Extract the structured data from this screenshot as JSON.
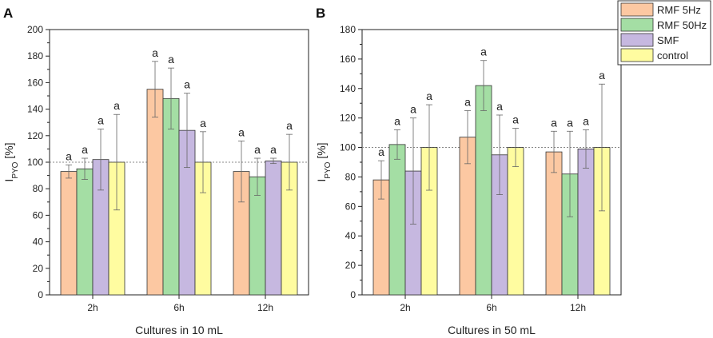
{
  "legend": {
    "entries": [
      {
        "name": "RMF 5Hz",
        "color": "#fcc8a2"
      },
      {
        "name": "RMF 50Hz",
        "color": "#a4dea4"
      },
      {
        "name": "SMF",
        "color": "#c6b8e0"
      },
      {
        "name": "control",
        "color": "#fffca0"
      }
    ]
  },
  "chart_data": [
    {
      "type": "bar",
      "panel": "A",
      "title": "",
      "xlabel": "Cultures in 10 mL",
      "ylabel_main": "I",
      "ylabel_sub": "PYO",
      "ylabel_tail": " [%]",
      "ylim": [
        0,
        200
      ],
      "yticks": [
        0,
        20,
        40,
        60,
        80,
        100,
        120,
        140,
        160,
        180,
        200
      ],
      "reference_line": 100,
      "categories": [
        "2h",
        "6h",
        "12h"
      ],
      "series": [
        {
          "name": "RMF 5Hz",
          "values": [
            93,
            155,
            93
          ],
          "errors": [
            5,
            21,
            23
          ],
          "labels": [
            "a",
            "a",
            "a"
          ]
        },
        {
          "name": "RMF 50Hz",
          "values": [
            95,
            148,
            89
          ],
          "errors": [
            8,
            23,
            14
          ],
          "labels": [
            "a",
            "a",
            "a"
          ]
        },
        {
          "name": "SMF",
          "values": [
            102,
            124,
            101
          ],
          "errors": [
            23,
            28,
            2
          ],
          "labels": [
            "a",
            "a",
            "a"
          ]
        },
        {
          "name": "control",
          "values": [
            100,
            100,
            100
          ],
          "errors": [
            36,
            23,
            21
          ],
          "labels": [
            "a",
            "a",
            "a"
          ]
        }
      ]
    },
    {
      "type": "bar",
      "panel": "B",
      "title": "",
      "xlabel": "Cultures in 50 mL",
      "ylabel_main": "I",
      "ylabel_sub": "PYO",
      "ylabel_tail": " [%]",
      "ylim": [
        0,
        180
      ],
      "yticks": [
        0,
        20,
        40,
        60,
        80,
        100,
        120,
        140,
        160,
        180
      ],
      "reference_line": 100,
      "categories": [
        "2h",
        "6h",
        "12h"
      ],
      "series": [
        {
          "name": "RMF 5Hz",
          "values": [
            78,
            107,
            97
          ],
          "errors": [
            13,
            18,
            14
          ],
          "labels": [
            "a",
            "a",
            "a"
          ]
        },
        {
          "name": "RMF 50Hz",
          "values": [
            102,
            142,
            82
          ],
          "errors": [
            10,
            17,
            29
          ],
          "labels": [
            "a",
            "a",
            "a"
          ]
        },
        {
          "name": "SMF",
          "values": [
            84,
            95,
            99
          ],
          "errors": [
            36,
            27,
            13
          ],
          "labels": [
            "a",
            "a",
            "a"
          ]
        },
        {
          "name": "control",
          "values": [
            100,
            100,
            100
          ],
          "errors": [
            29,
            13,
            43
          ],
          "labels": [
            "a",
            "a",
            "a"
          ]
        }
      ]
    }
  ]
}
